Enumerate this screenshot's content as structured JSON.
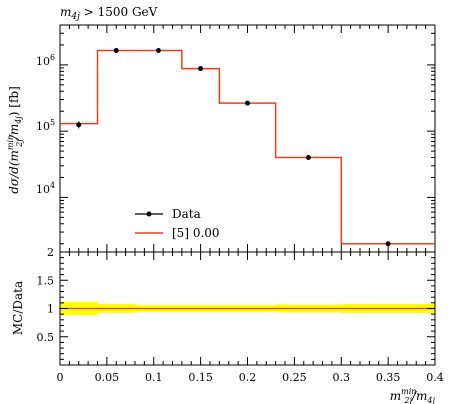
{
  "chart_data": [
    {
      "type": "line",
      "panel": "main",
      "title": "m4j > 1500 GeV",
      "ylabel": "dσ/d(m2j min/m4j) [fb]",
      "yscale": "log",
      "xlim": [
        0,
        0.4
      ],
      "ylim": [
        1500,
        4000000
      ],
      "y_tick_labels": [
        "10^4",
        "10^5",
        "10^6"
      ],
      "bin_edges": [
        0,
        0.04,
        0.08,
        0.13,
        0.17,
        0.23,
        0.3,
        0.4
      ],
      "series": [
        {
          "name": "Data",
          "style": "markers",
          "color": "#000000",
          "x": [
            0.02,
            0.06,
            0.105,
            0.15,
            0.2,
            0.265,
            0.35
          ],
          "y": [
            125000,
            1650000,
            1650000,
            880000,
            265000,
            40000,
            2000
          ],
          "yerr_rel": [
            0.12,
            0.05,
            0.05,
            0.05,
            0.05,
            0.05,
            0.05
          ]
        },
        {
          "name": "[5] 0.00",
          "style": "step",
          "color": "#e8401c",
          "values": [
            130000,
            1650000,
            1650000,
            880000,
            265000,
            40000,
            2000
          ]
        }
      ],
      "legend": {
        "placement": "bottom-left"
      }
    },
    {
      "type": "line",
      "panel": "ratio",
      "ylabel": "MC/Data",
      "xlabel": "m2j min/m4j",
      "xlim": [
        0,
        0.4
      ],
      "ylim": [
        0,
        2
      ],
      "x_tick_labels": [
        "0",
        "0.05",
        "0.1",
        "0.15",
        "0.2",
        "0.25",
        "0.3",
        "0.35",
        "0.4"
      ],
      "y_tick_labels": [
        "0.5",
        "1",
        "1.5",
        "2"
      ],
      "band_color": "#ffff00",
      "bin_edges": [
        0,
        0.04,
        0.08,
        0.13,
        0.17,
        0.23,
        0.3,
        0.4
      ],
      "band_rel": [
        0.12,
        0.08,
        0.06,
        0.06,
        0.06,
        0.07,
        0.08
      ],
      "ratio": [
        1,
        1,
        1,
        1,
        1,
        1,
        1
      ],
      "ratio_color": "#e8401c"
    }
  ],
  "labels": {
    "title_main": "m",
    "title_sub": "4j",
    "title_rest": " > 1500 GeV",
    "ylabel_main": "dσ/d(m",
    "ylabel_sup": "min",
    "ylabel_sub": "2j",
    "ylabel_rest": "/m",
    "ylabel_sub2": "4j",
    "ylabel_tail": ") [fb]",
    "ylabel_ratio": "MC/Data",
    "xlabel_main": "m",
    "xlabel_sup": "min",
    "xlabel_sub": "2j",
    "xlabel_rest": "/m",
    "xlabel_sub2": "4j",
    "legend_data": "Data",
    "legend_mc": "[5] 0.00"
  }
}
